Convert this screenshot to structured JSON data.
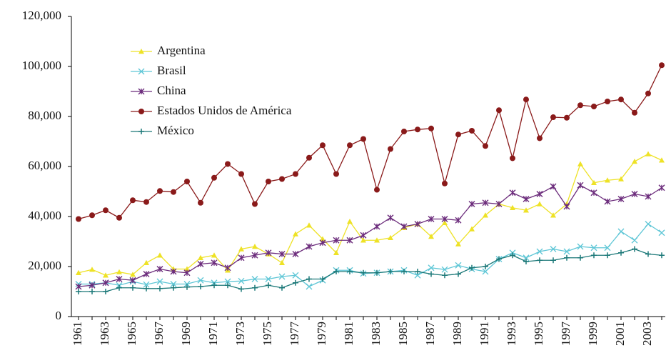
{
  "chart_data": {
    "type": "line",
    "categories": [
      "1961",
      null,
      "1963",
      null,
      "1965",
      null,
      "1967",
      null,
      "1969",
      null,
      "1971",
      null,
      "1973",
      null,
      "1975",
      null,
      "1977",
      null,
      "1979",
      null,
      "1981",
      null,
      "1983",
      null,
      "1985",
      null,
      "1987",
      null,
      "1989",
      null,
      "1991",
      null,
      "1993",
      null,
      "1995",
      null,
      "1997",
      null,
      "1999",
      null,
      "2001",
      null,
      "2003",
      null
    ],
    "series": [
      {
        "name": "Argentina",
        "color": "#eee226",
        "marker": "triangle",
        "values": [
          17500,
          18800,
          16500,
          17800,
          16800,
          21500,
          24500,
          19000,
          19000,
          23500,
          24500,
          18500,
          27000,
          28000,
          25000,
          21500,
          33000,
          36500,
          31000,
          25500,
          38000,
          30500,
          30500,
          31500,
          35500,
          37000,
          32000,
          37500,
          29000,
          35000,
          40500,
          45000,
          43500,
          42500,
          45000,
          40500,
          45000,
          61000,
          53500,
          54500,
          55000,
          62000,
          65000,
          62500
        ]
      },
      {
        "name": "Brasil",
        "color": "#5ec6d6",
        "marker": "x",
        "values": [
          13000,
          13000,
          13500,
          12500,
          14000,
          12800,
          14000,
          13000,
          13000,
          14500,
          13500,
          14000,
          14200,
          15000,
          15000,
          16000,
          16500,
          12000,
          14500,
          18500,
          18500,
          17200,
          17500,
          18000,
          18500,
          16500,
          19500,
          18800,
          20500,
          19000,
          18000,
          23000,
          25500,
          23500,
          26000,
          27000,
          26000,
          28000,
          27500,
          27500,
          34000,
          30500,
          37000,
          33500
        ]
      },
      {
        "name": "China",
        "color": "#6b2b7b",
        "marker": "star",
        "values": [
          12000,
          12500,
          13500,
          15000,
          14500,
          17000,
          19000,
          18000,
          17500,
          21000,
          21500,
          19500,
          23500,
          24500,
          25500,
          25000,
          25000,
          28000,
          29500,
          30500,
          30500,
          32500,
          36000,
          39500,
          36000,
          37000,
          39000,
          39000,
          38500,
          45000,
          45500,
          45000,
          49500,
          47000,
          49000,
          52000,
          44000,
          52500,
          49500,
          46000,
          47000,
          49000,
          48000,
          51500
        ]
      },
      {
        "name": "Estados Unidos de América",
        "color": "#8a1a1a",
        "marker": "circle",
        "values": [
          39000,
          40500,
          42500,
          39500,
          46500,
          45800,
          50200,
          49800,
          54000,
          45500,
          55500,
          61000,
          57000,
          45000,
          54000,
          55000,
          57000,
          63500,
          68500,
          57000,
          68500,
          71000,
          50700,
          67000,
          74000,
          74800,
          75200,
          53200,
          72800,
          74300,
          68200,
          82500,
          63300,
          86800,
          71300,
          79700,
          79500,
          84500,
          84000,
          86000,
          86800,
          81500,
          89200,
          100500
        ]
      },
      {
        "name": "México",
        "color": "#1b7878",
        "marker": "plus",
        "values": [
          10000,
          10000,
          10000,
          11500,
          11500,
          11200,
          11200,
          11500,
          11800,
          12000,
          12500,
          12500,
          11000,
          11500,
          12500,
          11500,
          13500,
          15000,
          15000,
          18000,
          18000,
          17500,
          17500,
          18000,
          18000,
          18000,
          17000,
          16500,
          17000,
          19500,
          20000,
          23000,
          24500,
          22000,
          22500,
          22500,
          23500,
          23500,
          24500,
          24500,
          25500,
          27000,
          25000,
          24500
        ]
      }
    ],
    "ylim": [
      0,
      120000
    ],
    "yticks": [
      0,
      {
        "value": 20000,
        "label": "20,000"
      },
      {
        "value": 40000,
        "label": "40,000"
      },
      {
        "value": 60000,
        "label": "60,000"
      },
      {
        "value": 80000,
        "label": "80,000"
      },
      {
        "value": 100000,
        "label": "100,000"
      },
      {
        "value": 120000,
        "label": "120,000"
      }
    ],
    "grid": false,
    "legend": "upper left"
  }
}
